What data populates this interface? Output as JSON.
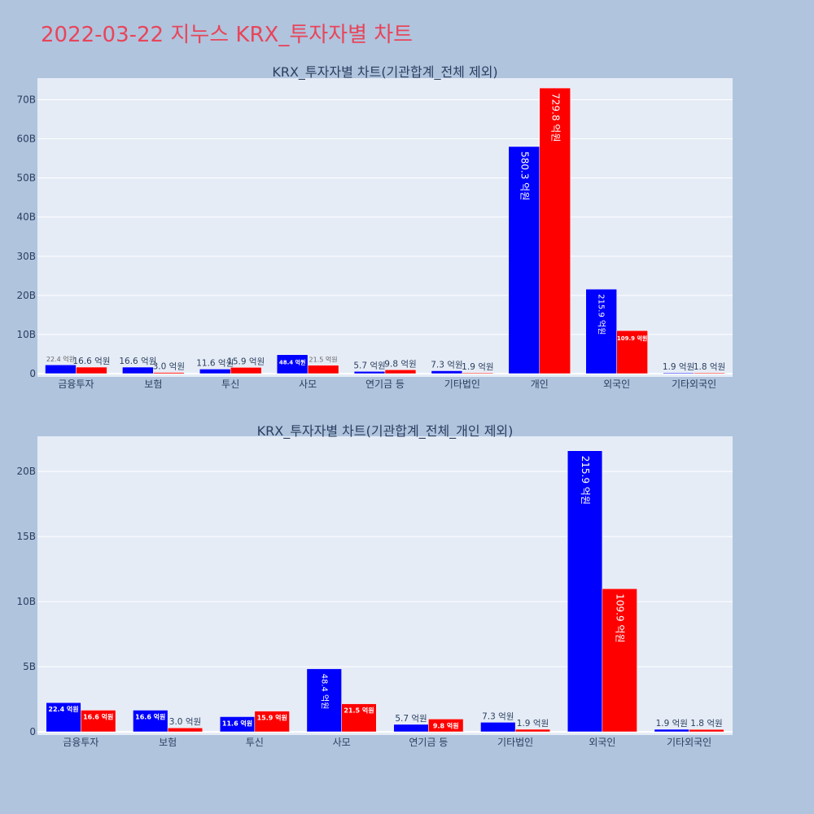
{
  "page_title": "2022-03-22 지누스 KRX_투자자별 차트",
  "colors": {
    "buy": "#0000ff",
    "sell": "#ff0000",
    "plot_bg": "#e5ecf6",
    "paper_bg": "#b0c4de",
    "text": "#2a3f5f"
  },
  "chart_data": [
    {
      "type": "bar",
      "title": "KRX_투자자별 차트(기관합계_전체 제외)",
      "categories": [
        "금융투자",
        "보험",
        "투신",
        "사모",
        "연기금 등",
        "기타법인",
        "개인",
        "외국인",
        "기타외국인"
      ],
      "series": [
        {
          "values": [
            2.24,
            1.66,
            1.16,
            4.84,
            0.57,
            0.73,
            58.03,
            21.59,
            0.19
          ],
          "labels": [
            "22.4 억원",
            "16.6 억원",
            "11.6 억원",
            "48.4 억원",
            "5.7 억원",
            "7.3 억원",
            "580.3 억원",
            "215.9 억원",
            "1.9 억원"
          ]
        },
        {
          "values": [
            1.66,
            0.3,
            1.59,
            2.15,
            0.98,
            0.19,
            72.98,
            10.99,
            0.18
          ],
          "labels": [
            "16.6 억원",
            "3.0 억원",
            "15.9 억원",
            "21.5 억원",
            "9.8 억원",
            "1.9 억원",
            "729.8 억원",
            "109.9 억원",
            "1.8 억원"
          ]
        }
      ],
      "yticks": [
        "0",
        "10B",
        "20B",
        "30B",
        "40B",
        "50B",
        "60B",
        "70B"
      ],
      "ylim": [
        0,
        75.5
      ],
      "grid": true
    },
    {
      "type": "bar",
      "title": "KRX_투자자별 차트(기관합계_전체_개인 제외)",
      "categories": [
        "금융투자",
        "보험",
        "투신",
        "사모",
        "연기금 등",
        "기타법인",
        "외국인",
        "기타외국인"
      ],
      "series": [
        {
          "values": [
            2.24,
            1.66,
            1.16,
            4.84,
            0.57,
            0.73,
            21.59,
            0.19
          ],
          "labels": [
            "22.4 억원",
            "16.6 억원",
            "11.6 억원",
            "48.4 억원",
            "5.7 억원",
            "7.3 억원",
            "215.9 억원",
            "1.9 억원"
          ]
        },
        {
          "values": [
            1.66,
            0.3,
            1.59,
            2.15,
            0.98,
            0.19,
            10.99,
            0.18
          ],
          "labels": [
            "16.6 억원",
            "3.0 억원",
            "15.9 억원",
            "21.5 억원",
            "9.8 억원",
            "1.9 억원",
            "109.9 억원",
            "1.8 억원"
          ]
        }
      ],
      "yticks": [
        "0",
        "5B",
        "10B",
        "15B",
        "20B"
      ],
      "ylim": [
        0,
        22.7
      ],
      "grid": true
    }
  ]
}
